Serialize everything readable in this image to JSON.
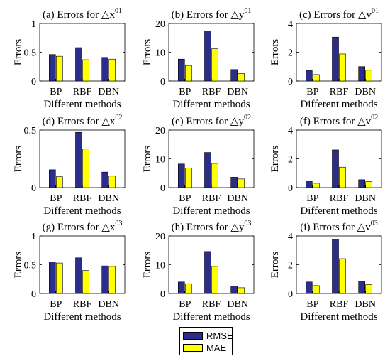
{
  "figure": {
    "ylabel": "Errors",
    "xlabel": "Different methods",
    "legend": [
      {
        "name": "RMSE",
        "color": "#2b2d8c"
      },
      {
        "name": "MAE",
        "color": "#ffff00"
      }
    ]
  },
  "chart_data": [
    {
      "type": "bar",
      "title": "(a) Errors for △x",
      "sup": "01",
      "categories": [
        "BP",
        "RBF",
        "DBN"
      ],
      "ylim": [
        0,
        1
      ],
      "yticks": [
        0,
        0.5,
        1
      ],
      "series": [
        {
          "name": "RMSE",
          "values": [
            0.46,
            0.58,
            0.41
          ]
        },
        {
          "name": "MAE",
          "values": [
            0.43,
            0.37,
            0.38
          ]
        }
      ]
    },
    {
      "type": "bar",
      "title": "(b) Errors for △y",
      "sup": "01",
      "categories": [
        "BP",
        "RBF",
        "DBN"
      ],
      "ylim": [
        0,
        20
      ],
      "yticks": [
        0,
        10,
        20
      ],
      "series": [
        {
          "name": "RMSE",
          "values": [
            7.6,
            17.4,
            4.0
          ]
        },
        {
          "name": "MAE",
          "values": [
            5.4,
            11.2,
            2.6
          ]
        }
      ]
    },
    {
      "type": "bar",
      "title": "(c) Errors for △v",
      "sup": "01",
      "categories": [
        "BP",
        "RBF",
        "DBN"
      ],
      "ylim": [
        0,
        4
      ],
      "yticks": [
        0,
        2,
        4
      ],
      "series": [
        {
          "name": "RMSE",
          "values": [
            0.72,
            3.05,
            1.0
          ]
        },
        {
          "name": "MAE",
          "values": [
            0.45,
            1.88,
            0.75
          ]
        }
      ]
    },
    {
      "type": "bar",
      "title": "(d) Errors for △x",
      "sup": "02",
      "categories": [
        "BP",
        "RBF",
        "DBN"
      ],
      "ylim": [
        0,
        0.5
      ],
      "yticks": [
        0,
        0.5
      ],
      "series": [
        {
          "name": "RMSE",
          "values": [
            0.155,
            0.48,
            0.135
          ]
        },
        {
          "name": "MAE",
          "values": [
            0.095,
            0.335,
            0.1
          ]
        }
      ]
    },
    {
      "type": "bar",
      "title": "(e) Errors for △y",
      "sup": "02",
      "categories": [
        "BP",
        "RBF",
        "DBN"
      ],
      "ylim": [
        0,
        20
      ],
      "yticks": [
        0,
        10,
        20
      ],
      "series": [
        {
          "name": "RMSE",
          "values": [
            8.2,
            12.2,
            3.6
          ]
        },
        {
          "name": "MAE",
          "values": [
            6.8,
            8.4,
            3.0
          ]
        }
      ]
    },
    {
      "type": "bar",
      "title": "(f) Errors for △v",
      "sup": "02",
      "categories": [
        "BP",
        "RBF",
        "DBN"
      ],
      "ylim": [
        0,
        4
      ],
      "yticks": [
        0,
        2,
        4
      ],
      "series": [
        {
          "name": "RMSE",
          "values": [
            0.45,
            2.62,
            0.55
          ]
        },
        {
          "name": "MAE",
          "values": [
            0.3,
            1.42,
            0.42
          ]
        }
      ]
    },
    {
      "type": "bar",
      "title": "(g) Errors for △x",
      "sup": "03",
      "categories": [
        "BP",
        "RBF",
        "DBN"
      ],
      "ylim": [
        0,
        1
      ],
      "yticks": [
        0,
        0.5,
        1
      ],
      "series": [
        {
          "name": "RMSE",
          "values": [
            0.55,
            0.62,
            0.48
          ]
        },
        {
          "name": "MAE",
          "values": [
            0.53,
            0.4,
            0.47
          ]
        }
      ]
    },
    {
      "type": "bar",
      "title": "(h) Errors for △y",
      "sup": "03",
      "categories": [
        "BP",
        "RBF",
        "DBN"
      ],
      "ylim": [
        0,
        20
      ],
      "yticks": [
        0,
        10,
        20
      ],
      "series": [
        {
          "name": "RMSE",
          "values": [
            4.0,
            14.6,
            2.6
          ]
        },
        {
          "name": "MAE",
          "values": [
            3.4,
            9.4,
            2.0
          ]
        }
      ]
    },
    {
      "type": "bar",
      "title": "(i) Errors for △v",
      "sup": "03",
      "categories": [
        "BP",
        "RBF",
        "DBN"
      ],
      "ylim": [
        0,
        4
      ],
      "yticks": [
        0,
        2,
        4
      ],
      "series": [
        {
          "name": "RMSE",
          "values": [
            0.8,
            3.78,
            0.85
          ]
        },
        {
          "name": "MAE",
          "values": [
            0.55,
            2.42,
            0.62
          ]
        }
      ]
    }
  ]
}
